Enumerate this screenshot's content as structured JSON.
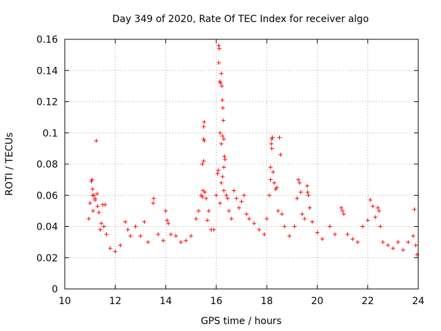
{
  "chart_data": {
    "type": "scatter",
    "title": "Day 349 of 2020, Rate Of TEC Index for receiver algo",
    "xlabel": "GPS time / hours",
    "ylabel": "ROTI / TECUs",
    "xlim": [
      10,
      24
    ],
    "ylim": [
      0,
      0.16
    ],
    "xticks": [
      10,
      12,
      14,
      16,
      18,
      20,
      22,
      24
    ],
    "yticks": [
      0,
      0.02,
      0.04,
      0.06,
      0.08,
      0.1,
      0.12,
      0.14,
      0.16
    ],
    "xtick_labels": [
      "10",
      "12",
      "14",
      "16",
      "18",
      "20",
      "22",
      "24"
    ],
    "ytick_labels": [
      "0",
      "0.02",
      "0.04",
      "0.06",
      "0.08",
      "0.1",
      "0.12",
      "0.14",
      "0.16"
    ],
    "grid": true,
    "marker": "+",
    "series": [
      {
        "name": "ROTI",
        "color": "#ff0000",
        "points": [
          [
            10.95,
            0.045
          ],
          [
            11.0,
            0.055
          ],
          [
            11.05,
            0.069
          ],
          [
            11.08,
            0.07
          ],
          [
            11.1,
            0.064
          ],
          [
            11.15,
            0.06
          ],
          [
            11.2,
            0.057
          ],
          [
            11.25,
            0.095
          ],
          [
            11.3,
            0.053
          ],
          [
            11.35,
            0.049
          ],
          [
            11.1,
            0.06
          ],
          [
            11.12,
            0.05
          ],
          [
            11.2,
            0.058
          ],
          [
            11.28,
            0.061
          ],
          [
            11.45,
            0.042
          ],
          [
            11.5,
            0.054
          ],
          [
            11.6,
            0.054
          ],
          [
            11.55,
            0.04
          ],
          [
            11.4,
            0.038
          ],
          [
            11.65,
            0.035
          ],
          [
            11.8,
            0.026
          ],
          [
            12.0,
            0.024
          ],
          [
            12.2,
            0.028
          ],
          [
            12.4,
            0.043
          ],
          [
            12.5,
            0.038
          ],
          [
            12.6,
            0.034
          ],
          [
            12.8,
            0.04
          ],
          [
            13.0,
            0.034
          ],
          [
            13.15,
            0.043
          ],
          [
            13.3,
            0.03
          ],
          [
            13.5,
            0.055
          ],
          [
            13.52,
            0.058
          ],
          [
            13.7,
            0.035
          ],
          [
            13.9,
            0.031
          ],
          [
            14.0,
            0.05
          ],
          [
            14.05,
            0.044
          ],
          [
            14.1,
            0.042
          ],
          [
            14.2,
            0.035
          ],
          [
            14.4,
            0.034
          ],
          [
            14.6,
            0.03
          ],
          [
            14.8,
            0.031
          ],
          [
            15.0,
            0.034
          ],
          [
            15.2,
            0.045
          ],
          [
            15.3,
            0.05
          ],
          [
            15.4,
            0.06
          ],
          [
            15.45,
            0.059
          ],
          [
            15.48,
            0.063
          ],
          [
            15.5,
            0.096
          ],
          [
            15.52,
            0.095
          ],
          [
            15.5,
            0.104
          ],
          [
            15.52,
            0.107
          ],
          [
            15.45,
            0.08
          ],
          [
            15.5,
            0.082
          ],
          [
            15.55,
            0.062
          ],
          [
            15.6,
            0.058
          ],
          [
            15.65,
            0.044
          ],
          [
            15.7,
            0.05
          ],
          [
            15.8,
            0.038
          ],
          [
            15.9,
            0.038
          ],
          [
            16.0,
            0.06
          ],
          [
            16.05,
            0.074
          ],
          [
            16.08,
            0.076
          ],
          [
            16.1,
            0.156
          ],
          [
            16.12,
            0.154
          ],
          [
            16.1,
            0.145
          ],
          [
            16.14,
            0.133
          ],
          [
            16.17,
            0.132
          ],
          [
            16.2,
            0.138
          ],
          [
            16.22,
            0.13
          ],
          [
            16.24,
            0.121
          ],
          [
            16.26,
            0.116
          ],
          [
            16.28,
            0.108
          ],
          [
            16.25,
            0.098
          ],
          [
            16.3,
            0.096
          ],
          [
            16.15,
            0.1
          ],
          [
            16.2,
            0.093
          ],
          [
            16.32,
            0.085
          ],
          [
            16.35,
            0.083
          ],
          [
            16.3,
            0.078
          ],
          [
            16.25,
            0.072
          ],
          [
            16.2,
            0.068
          ],
          [
            16.3,
            0.063
          ],
          [
            16.4,
            0.06
          ],
          [
            16.45,
            0.058
          ],
          [
            16.15,
            0.055
          ],
          [
            16.5,
            0.05
          ],
          [
            16.6,
            0.045
          ],
          [
            16.7,
            0.063
          ],
          [
            16.8,
            0.058
          ],
          [
            16.9,
            0.052
          ],
          [
            17.0,
            0.056
          ],
          [
            17.1,
            0.06
          ],
          [
            17.2,
            0.048
          ],
          [
            17.3,
            0.045
          ],
          [
            17.5,
            0.042
          ],
          [
            17.7,
            0.038
          ],
          [
            17.9,
            0.035
          ],
          [
            18.0,
            0.045
          ],
          [
            18.1,
            0.06
          ],
          [
            18.15,
            0.07
          ],
          [
            18.18,
            0.093
          ],
          [
            18.2,
            0.096
          ],
          [
            18.22,
            0.097
          ],
          [
            18.2,
            0.09
          ],
          [
            18.15,
            0.078
          ],
          [
            18.25,
            0.075
          ],
          [
            18.3,
            0.068
          ],
          [
            18.35,
            0.064
          ],
          [
            18.4,
            0.065
          ],
          [
            18.45,
            0.05
          ],
          [
            18.5,
            0.097
          ],
          [
            18.55,
            0.086
          ],
          [
            18.6,
            0.048
          ],
          [
            18.7,
            0.04
          ],
          [
            18.9,
            0.034
          ],
          [
            19.1,
            0.04
          ],
          [
            19.2,
            0.058
          ],
          [
            19.25,
            0.07
          ],
          [
            19.3,
            0.068
          ],
          [
            19.35,
            0.062
          ],
          [
            19.4,
            0.048
          ],
          [
            19.5,
            0.045
          ],
          [
            19.6,
            0.066
          ],
          [
            19.62,
            0.062
          ],
          [
            19.65,
            0.06
          ],
          [
            19.7,
            0.052
          ],
          [
            19.8,
            0.043
          ],
          [
            20.0,
            0.036
          ],
          [
            20.2,
            0.032
          ],
          [
            20.5,
            0.04
          ],
          [
            20.7,
            0.035
          ],
          [
            20.95,
            0.052
          ],
          [
            21.0,
            0.05
          ],
          [
            21.05,
            0.048
          ],
          [
            21.2,
            0.035
          ],
          [
            21.4,
            0.032
          ],
          [
            21.6,
            0.03
          ],
          [
            21.8,
            0.04
          ],
          [
            22.0,
            0.044
          ],
          [
            22.1,
            0.057
          ],
          [
            22.2,
            0.053
          ],
          [
            22.3,
            0.046
          ],
          [
            22.4,
            0.052
          ],
          [
            22.45,
            0.05
          ],
          [
            22.5,
            0.04
          ],
          [
            22.6,
            0.03
          ],
          [
            22.8,
            0.028
          ],
          [
            23.0,
            0.026
          ],
          [
            23.2,
            0.03
          ],
          [
            23.4,
            0.025
          ],
          [
            23.6,
            0.03
          ],
          [
            23.8,
            0.034
          ],
          [
            23.85,
            0.051
          ],
          [
            23.9,
            0.028
          ],
          [
            23.95,
            0.022
          ]
        ]
      }
    ]
  }
}
